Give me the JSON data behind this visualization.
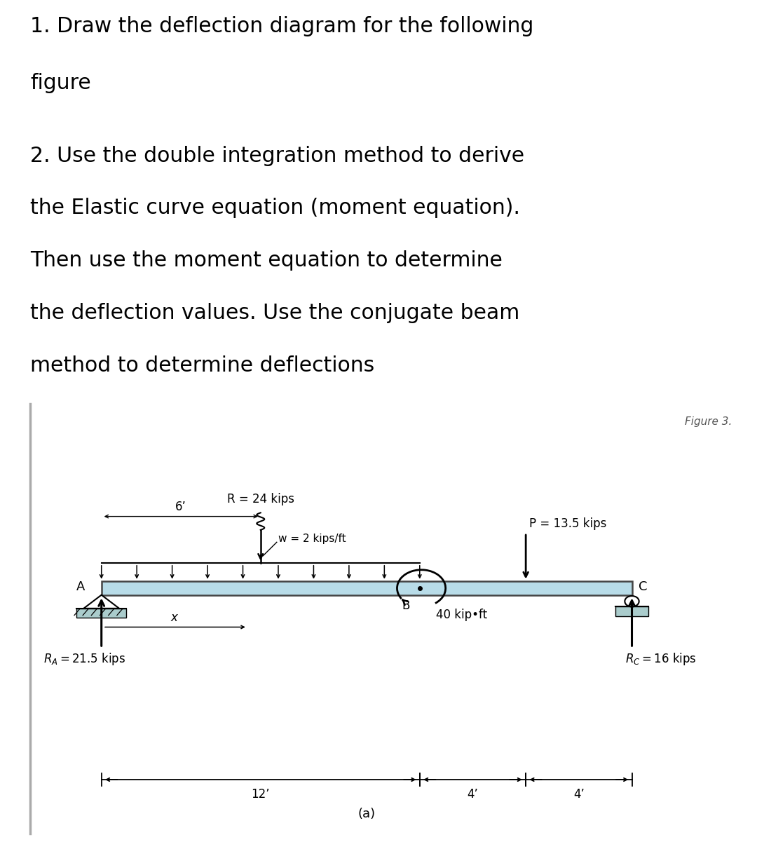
{
  "text_line1": "1. Draw the deflection diagram for the following",
  "text_line2": "figure",
  "text_blank": "",
  "text_line3": "2. Use the double integration method to derive",
  "text_line4": "the Elastic curve equation (moment equation).",
  "text_line5": "Then use the moment equation to determine",
  "text_line6": "the deflection values. Use the conjugate beam",
  "text_line7": "method to determine deflections",
  "figure_label": "Figure 3.",
  "label_R": "R = 24 kips",
  "label_6ft": "6’",
  "label_w": "w = 2 kips/ft",
  "label_P": "P = 13.5 kips",
  "label_A": "A",
  "label_B": "B",
  "label_C": "C",
  "label_moment": "40 kip•ft",
  "label_x": "x",
  "label_RA_text": "R_A = 21.5 kips",
  "label_RC_text": "R_C = 16 kips",
  "label_RA_math": "$R_A = 21.5$ kips",
  "label_RC_math": "$R_C = 16$ kips",
  "label_12ft": "12’",
  "label_4ft_1": "4’",
  "label_4ft_2": "4’",
  "label_a": "(a)",
  "beam_color": "#b8dce8",
  "beam_outline": "#444444",
  "background_color": "#ffffff",
  "diagram_bg": "#f0f0f0",
  "text_color": "#000000",
  "arrow_color": "#000000",
  "support_fill": "#aaccdd",
  "border_color": "#aaaaaa"
}
